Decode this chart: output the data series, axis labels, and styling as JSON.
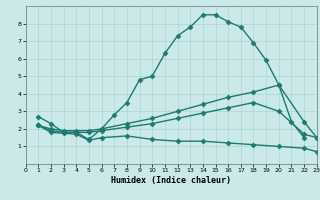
{
  "xlabel": "Humidex (Indice chaleur)",
  "xlim": [
    0,
    23
  ],
  "ylim": [
    0,
    9
  ],
  "xticks": [
    0,
    1,
    2,
    3,
    4,
    5,
    6,
    7,
    8,
    9,
    10,
    11,
    12,
    13,
    14,
    15,
    16,
    17,
    18,
    19,
    20,
    21,
    22,
    23
  ],
  "yticks": [
    1,
    2,
    3,
    4,
    5,
    6,
    7,
    8
  ],
  "background_color": "#cce9e9",
  "grid_color": "#aad4d4",
  "line_color": "#1e7a70",
  "line_width": 1.0,
  "marker": "D",
  "marker_size": 2.5,
  "series": [
    {
      "x": [
        1,
        2,
        3,
        4,
        5,
        6,
        7,
        8,
        9,
        10,
        11,
        12,
        13,
        14,
        15,
        16,
        17,
        18,
        19,
        20,
        21,
        22
      ],
      "y": [
        2.7,
        2.3,
        1.8,
        1.8,
        1.4,
        2.0,
        2.8,
        3.5,
        4.8,
        5.0,
        6.3,
        7.3,
        7.8,
        8.5,
        8.5,
        8.1,
        7.8,
        6.9,
        5.9,
        4.5,
        2.4,
        1.5
      ]
    },
    {
      "x": [
        1,
        2,
        3,
        4,
        5,
        6,
        8,
        10,
        12,
        14,
        16,
        18,
        20,
        22,
        23
      ],
      "y": [
        2.2,
        2.0,
        1.9,
        1.9,
        1.9,
        2.0,
        2.3,
        2.6,
        3.0,
        3.4,
        3.8,
        4.1,
        4.5,
        2.4,
        1.5
      ]
    },
    {
      "x": [
        1,
        2,
        3,
        4,
        5,
        6,
        8,
        10,
        12,
        14,
        16,
        18,
        20,
        22,
        23
      ],
      "y": [
        2.2,
        1.9,
        1.8,
        1.8,
        1.8,
        1.9,
        2.1,
        2.3,
        2.6,
        2.9,
        3.2,
        3.5,
        3.0,
        1.7,
        1.5
      ]
    },
    {
      "x": [
        1,
        2,
        3,
        4,
        5,
        6,
        8,
        10,
        12,
        14,
        16,
        18,
        20,
        22,
        23
      ],
      "y": [
        2.2,
        1.8,
        1.75,
        1.7,
        1.35,
        1.5,
        1.6,
        1.4,
        1.3,
        1.3,
        1.2,
        1.1,
        1.0,
        0.9,
        0.7
      ]
    }
  ]
}
